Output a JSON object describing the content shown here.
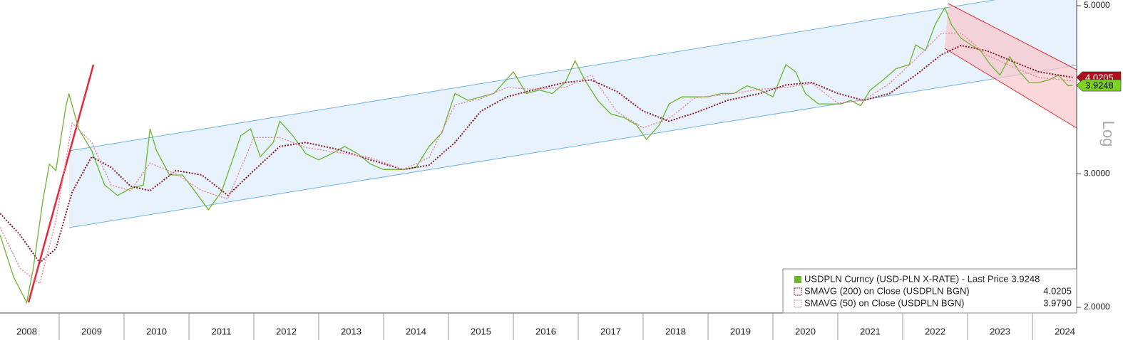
{
  "chart_data": {
    "type": "line",
    "log": true,
    "log_label": "Log",
    "grid": false,
    "xlim": [
      2008.088,
      2024.681
    ],
    "ylim": [
      1.966,
      5.087
    ],
    "xticks": [
      2008,
      2009,
      2010,
      2011,
      2012,
      2013,
      2014,
      2015,
      2016,
      2017,
      2018,
      2019,
      2020,
      2021,
      2022,
      2023,
      2024
    ],
    "yticks": [
      {
        "value": 2,
        "label": "2.0000"
      },
      {
        "value": 3,
        "label": "3.0000"
      },
      {
        "value": 5,
        "label": "5.0000"
      }
    ],
    "series": [
      {
        "name": "USDPLN Curncy (USD-PLN X-RATE) - Last Price",
        "color": "#6cb52d",
        "last_value_label": "3.9248",
        "x": [
          2008.09,
          2008.3,
          2008.5,
          2008.6,
          2008.75,
          2008.85,
          2008.95,
          2009.1,
          2009.15,
          2009.3,
          2009.5,
          2009.7,
          2009.9,
          2010.1,
          2010.3,
          2010.4,
          2010.5,
          2010.7,
          2010.9,
          2011.1,
          2011.3,
          2011.5,
          2011.65,
          2011.8,
          2011.95,
          2012.1,
          2012.3,
          2012.4,
          2012.6,
          2012.8,
          2013.0,
          2013.2,
          2013.4,
          2013.6,
          2013.8,
          2014.0,
          2014.3,
          2014.5,
          2014.7,
          2014.9,
          2015.1,
          2015.3,
          2015.5,
          2015.7,
          2015.9,
          2016.0,
          2016.2,
          2016.4,
          2016.6,
          2016.8,
          2016.95,
          2017.1,
          2017.3,
          2017.5,
          2017.7,
          2017.9,
          2018.05,
          2018.25,
          2018.4,
          2018.6,
          2018.8,
          2019.0,
          2019.2,
          2019.4,
          2019.6,
          2019.8,
          2020.0,
          2020.2,
          2020.35,
          2020.5,
          2020.7,
          2020.9,
          2021.05,
          2021.2,
          2021.35,
          2021.5,
          2021.7,
          2021.9,
          2022.1,
          2022.2,
          2022.35,
          2022.5,
          2022.65,
          2022.75,
          2022.9,
          2023.05,
          2023.2,
          2023.35,
          2023.5,
          2023.65,
          2023.8,
          2023.95,
          2024.1,
          2024.25,
          2024.4,
          2024.55,
          2024.62
        ],
        "values": [
          2.49,
          2.19,
          2.03,
          2.25,
          2.77,
          3.09,
          3.03,
          3.67,
          3.83,
          3.44,
          3.22,
          2.9,
          2.81,
          2.87,
          2.9,
          3.44,
          3.22,
          2.99,
          2.99,
          2.84,
          2.69,
          2.84,
          3.09,
          3.37,
          3.44,
          3.16,
          3.3,
          3.52,
          3.37,
          3.19,
          3.13,
          3.19,
          3.26,
          3.19,
          3.09,
          3.04,
          3.04,
          3.06,
          3.26,
          3.4,
          3.83,
          3.75,
          3.79,
          3.83,
          4.0,
          4.09,
          3.83,
          3.87,
          3.83,
          3.96,
          4.23,
          3.99,
          3.75,
          3.6,
          3.56,
          3.48,
          3.33,
          3.48,
          3.71,
          3.79,
          3.79,
          3.79,
          3.83,
          3.83,
          3.92,
          3.87,
          3.79,
          4.18,
          4.09,
          3.83,
          3.71,
          3.71,
          3.71,
          3.75,
          3.69,
          3.87,
          3.99,
          4.13,
          4.18,
          4.44,
          4.36,
          4.72,
          4.97,
          4.72,
          4.53,
          4.44,
          4.36,
          4.18,
          4.05,
          4.28,
          4.09,
          3.96,
          3.96,
          3.99,
          4.05,
          3.92,
          3.9248
        ]
      },
      {
        "name": "SMAVG (200)  on Close (USDPLN BGN)",
        "color": "#8b1a2b",
        "last_value_label": "4.0205",
        "x": [
          2008.09,
          2008.4,
          2008.7,
          2008.95,
          2009.2,
          2009.5,
          2009.8,
          2010.1,
          2010.4,
          2010.8,
          2011.2,
          2011.6,
          2012.0,
          2012.4,
          2012.8,
          2013.3,
          2013.8,
          2014.3,
          2014.7,
          2015.1,
          2015.5,
          2015.9,
          2016.3,
          2016.8,
          2017.2,
          2017.6,
          2018.0,
          2018.4,
          2018.8,
          2019.3,
          2019.8,
          2020.2,
          2020.6,
          2021.0,
          2021.4,
          2021.8,
          2022.2,
          2022.6,
          2022.9,
          2023.3,
          2023.7,
          2024.1,
          2024.62
        ],
        "values": [
          2.66,
          2.49,
          2.29,
          2.39,
          2.84,
          3.16,
          3.06,
          2.89,
          2.85,
          3.03,
          2.99,
          2.81,
          3.03,
          3.26,
          3.3,
          3.23,
          3.13,
          3.04,
          3.08,
          3.3,
          3.63,
          3.79,
          3.87,
          3.96,
          3.99,
          3.85,
          3.63,
          3.52,
          3.61,
          3.75,
          3.83,
          3.93,
          3.96,
          3.83,
          3.75,
          3.83,
          4.05,
          4.31,
          4.43,
          4.36,
          4.22,
          4.09,
          4.0205
        ]
      },
      {
        "name": "SMAVG (50)  on Close (USDPLN BGN)",
        "color": "#e8899a",
        "last_value_label": "3.9790",
        "x": [
          2008.09,
          2008.4,
          2008.7,
          2008.95,
          2009.2,
          2009.5,
          2009.8,
          2010.1,
          2010.4,
          2010.8,
          2011.2,
          2011.6,
          2012.0,
          2012.4,
          2012.8,
          2013.3,
          2013.8,
          2014.3,
          2014.7,
          2015.1,
          2015.5,
          2015.9,
          2016.3,
          2016.8,
          2017.2,
          2017.6,
          2018.0,
          2018.4,
          2018.8,
          2019.3,
          2019.8,
          2020.2,
          2020.6,
          2021.0,
          2021.4,
          2021.8,
          2022.2,
          2022.6,
          2022.9,
          2023.3,
          2023.7,
          2024.1,
          2024.62
        ],
        "values": [
          2.55,
          2.25,
          2.15,
          2.6,
          3.5,
          3.3,
          2.9,
          2.85,
          3.1,
          3.0,
          2.85,
          2.78,
          3.35,
          3.35,
          3.25,
          3.2,
          3.15,
          3.04,
          3.15,
          3.7,
          3.77,
          3.9,
          3.88,
          3.9,
          4.05,
          3.62,
          3.45,
          3.55,
          3.78,
          3.82,
          3.88,
          3.9,
          3.95,
          3.72,
          3.75,
          3.95,
          4.25,
          4.6,
          4.6,
          4.3,
          4.15,
          4.02,
          3.979
        ]
      }
    ]
  }
}
